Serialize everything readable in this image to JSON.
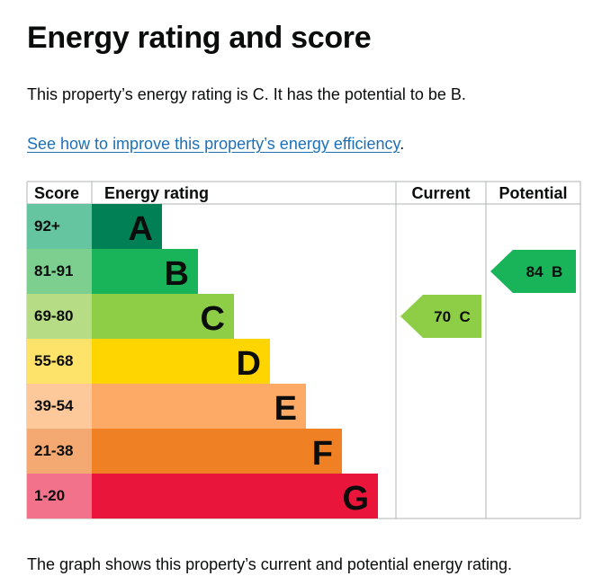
{
  "page": {
    "title": "Energy rating and score",
    "summary": "This property’s energy rating is C. It has the potential to be B.",
    "link_text": "See how to improve this property’s energy efficiency",
    "link_suffix": ".",
    "caption": "The graph shows this property’s current and potential energy rating."
  },
  "chart_data": {
    "type": "bar",
    "headers": {
      "score": "Score",
      "rating": "Energy rating",
      "current": "Current",
      "potential": "Potential"
    },
    "bands": [
      {
        "letter": "A",
        "range": "92+",
        "color": "#008054",
        "score_color": "#64c5a0"
      },
      {
        "letter": "B",
        "range": "81-91",
        "color": "#19b459",
        "score_color": "#7ccf8f"
      },
      {
        "letter": "C",
        "range": "69-80",
        "color": "#8dce46",
        "score_color": "#b6dd86"
      },
      {
        "letter": "D",
        "range": "55-68",
        "color": "#ffd500",
        "score_color": "#fde36a"
      },
      {
        "letter": "E",
        "range": "39-54",
        "color": "#fcaa65",
        "score_color": "#fdc89a"
      },
      {
        "letter": "F",
        "range": "21-38",
        "color": "#ef8023",
        "score_color": "#f4a972"
      },
      {
        "letter": "G",
        "range": "1-20",
        "color": "#e9153b",
        "score_color": "#f2728c"
      }
    ],
    "current": {
      "score": 70,
      "band": "C",
      "label": "70  C"
    },
    "potential": {
      "score": 84,
      "band": "B",
      "label": "84  B"
    }
  }
}
